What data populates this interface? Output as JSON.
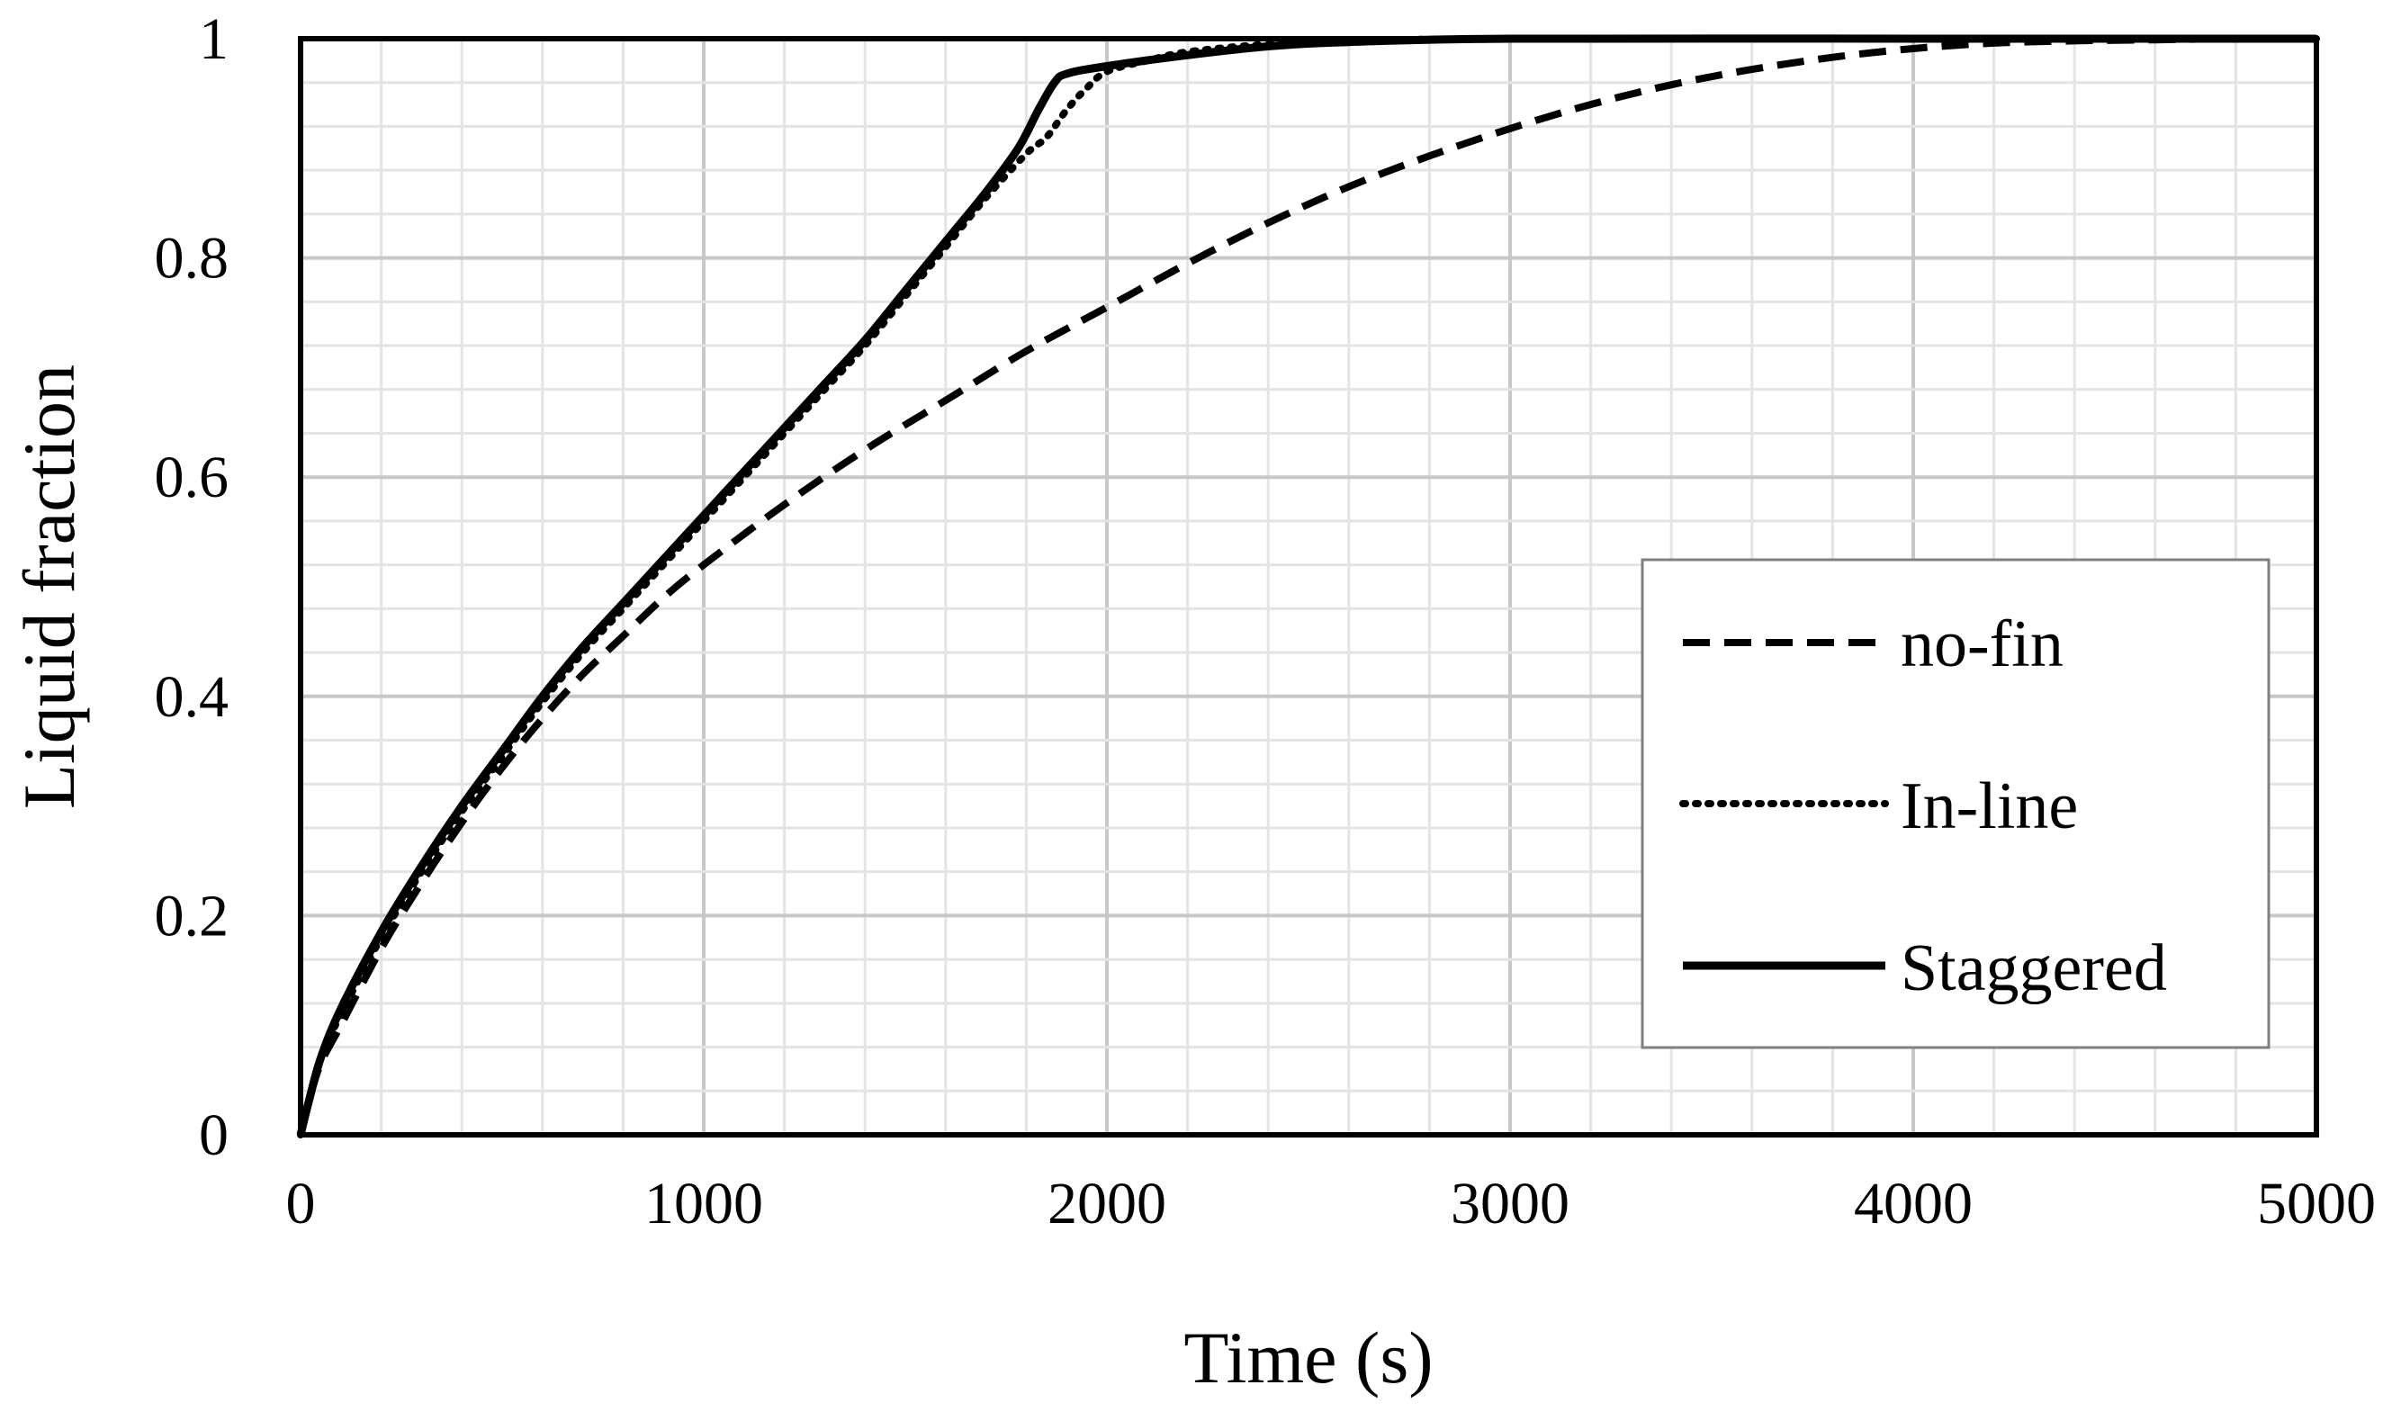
{
  "chart_data": {
    "type": "line",
    "title": "",
    "xlabel": "Time (s)",
    "ylabel": "Liquid fraction",
    "xlim": [
      0,
      5000
    ],
    "ylim": [
      0,
      1
    ],
    "x_ticks": [
      0,
      1000,
      2000,
      3000,
      4000,
      5000
    ],
    "y_ticks": [
      0,
      0.2,
      0.4,
      0.6,
      0.8,
      1
    ],
    "x_tick_labels": [
      "0",
      "1000",
      "2000",
      "3000",
      "4000",
      "5000"
    ],
    "y_tick_labels": [
      "0",
      "0.2",
      "0.4",
      "0.6",
      "0.8",
      "1"
    ],
    "grid": true,
    "minor_grid": true,
    "legend_position": "right-middle",
    "series": [
      {
        "name": "no-fin",
        "style": "dashed",
        "color": "#000000",
        "x": [
          0,
          20,
          50,
          100,
          200,
          300,
          400,
          500,
          600,
          700,
          800,
          900,
          1000,
          1200,
          1400,
          1600,
          1800,
          2000,
          2200,
          2400,
          2600,
          2800,
          3000,
          3200,
          3400,
          3600,
          3800,
          4000,
          4200,
          4400,
          4600,
          4800,
          5000
        ],
        "y": [
          0,
          0.03,
          0.065,
          0.1,
          0.17,
          0.23,
          0.285,
          0.335,
          0.38,
          0.42,
          0.455,
          0.49,
          0.52,
          0.575,
          0.625,
          0.67,
          0.715,
          0.755,
          0.795,
          0.832,
          0.865,
          0.893,
          0.918,
          0.94,
          0.958,
          0.972,
          0.983,
          0.991,
          0.996,
          0.998,
          0.999,
          1.0,
          1.0
        ]
      },
      {
        "name": "In-line",
        "style": "dotted",
        "color": "#000000",
        "x": [
          0,
          20,
          50,
          100,
          200,
          300,
          400,
          500,
          600,
          700,
          800,
          900,
          1000,
          1100,
          1200,
          1300,
          1400,
          1500,
          1600,
          1700,
          1800,
          1850,
          1900,
          1950,
          2000,
          2100,
          2200,
          2400,
          2600,
          3000,
          4000,
          5000
        ],
        "y": [
          0,
          0.03,
          0.07,
          0.11,
          0.18,
          0.24,
          0.295,
          0.345,
          0.395,
          0.44,
          0.48,
          0.52,
          0.56,
          0.6,
          0.64,
          0.68,
          0.72,
          0.765,
          0.81,
          0.855,
          0.895,
          0.91,
          0.935,
          0.955,
          0.97,
          0.98,
          0.988,
          0.995,
          0.998,
          1.0,
          1.0,
          1.0
        ]
      },
      {
        "name": "Staggered",
        "style": "solid",
        "color": "#000000",
        "x": [
          0,
          20,
          50,
          100,
          200,
          300,
          400,
          500,
          600,
          700,
          800,
          900,
          1000,
          1100,
          1200,
          1300,
          1400,
          1500,
          1600,
          1700,
          1780,
          1830,
          1870,
          1900,
          2000,
          2200,
          2400,
          2600,
          3000,
          4000,
          5000
        ],
        "y": [
          0,
          0.03,
          0.07,
          0.115,
          0.185,
          0.245,
          0.3,
          0.35,
          0.4,
          0.445,
          0.485,
          0.525,
          0.565,
          0.605,
          0.645,
          0.685,
          0.725,
          0.77,
          0.815,
          0.86,
          0.9,
          0.935,
          0.96,
          0.968,
          0.975,
          0.985,
          0.993,
          0.997,
          1.0,
          1.0,
          1.0
        ]
      }
    ]
  }
}
